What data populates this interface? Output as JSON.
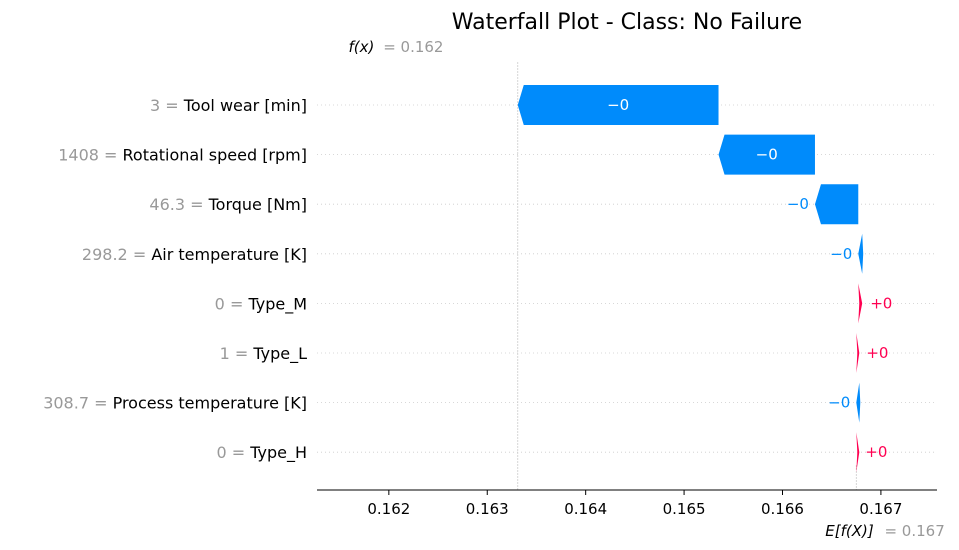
{
  "chart_data": {
    "type": "waterfall",
    "title": "Waterfall Plot - Class: No Failure",
    "fx_prefix": "f(x)",
    "fx_value_label": "= 0.162",
    "ex_prefix": "E[f(X)]",
    "ex_value_label": "= 0.167",
    "base_value": 0.16675,
    "xlim": [
      0.16127,
      0.16757
    ],
    "x_ticks": [
      0.162,
      0.163,
      0.164,
      0.165,
      0.166,
      0.167
    ],
    "x_tick_labels": [
      "0.162",
      "0.163",
      "0.164",
      "0.165",
      "0.166",
      "0.167"
    ],
    "grid": "dotted-horizontal",
    "colors": {
      "negative": "#008bfb",
      "positive": "#ff0051",
      "axis": "#000000",
      "muted": "#999999"
    },
    "features": [
      {
        "value_label": "3 =",
        "name": "Tool wear [min]",
        "shap": -0.00204,
        "label": "−0"
      },
      {
        "value_label": "1408 =",
        "name": "Rotational speed [rpm]",
        "shap": -0.00098,
        "label": "−0"
      },
      {
        "value_label": "46.3 =",
        "name": "Torque [Nm]",
        "shap": -0.00044,
        "label": "−0"
      },
      {
        "value_label": "298.2 =",
        "name": "Air temperature [K]",
        "shap": -4e-05,
        "label": "−0"
      },
      {
        "value_label": "0 =",
        "name": "Type_M",
        "shap": 4e-05,
        "label": "+0"
      },
      {
        "value_label": "1 =",
        "name": "Type_L",
        "shap": 2e-05,
        "label": "+0"
      },
      {
        "value_label": "308.7 =",
        "name": "Process temperature [K]",
        "shap": -1e-05,
        "label": "−0"
      },
      {
        "value_label": "0 =",
        "name": "Type_H",
        "shap": 1e-05,
        "label": "+0"
      }
    ]
  }
}
